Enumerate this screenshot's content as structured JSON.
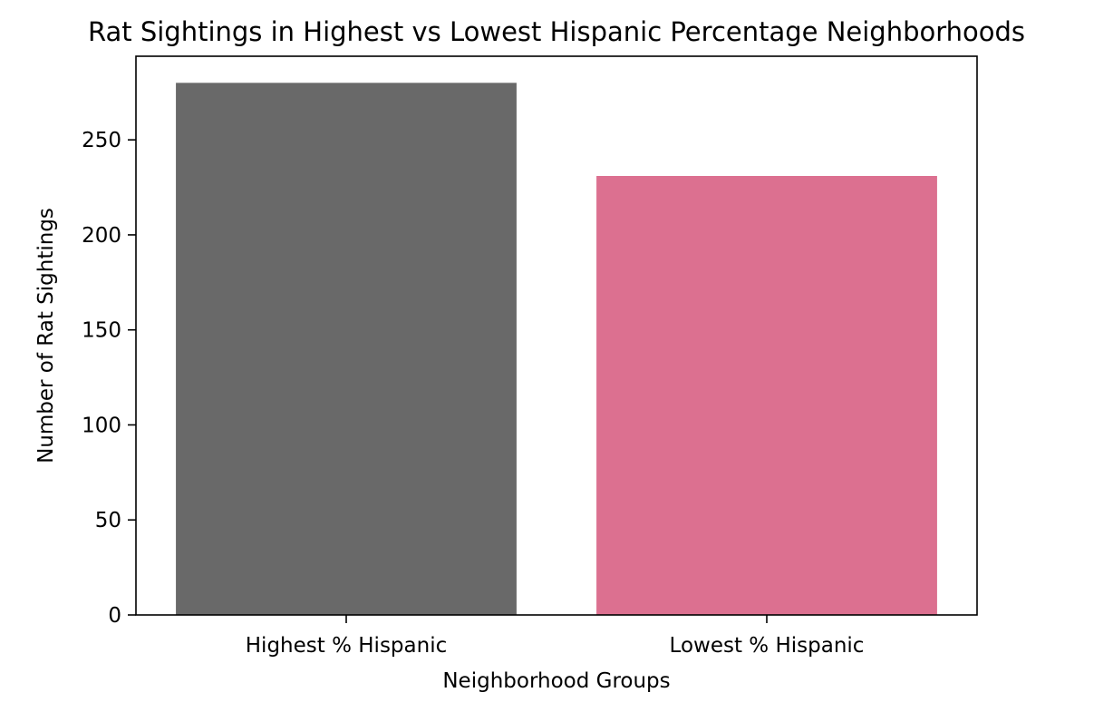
{
  "chart_data": {
    "type": "bar",
    "title": "Rat Sightings in Highest vs Lowest Hispanic Percentage Neighborhoods",
    "xlabel": "Neighborhood Groups",
    "ylabel": "Number of Rat Sightings",
    "categories": [
      "Highest % Hispanic",
      "Lowest % Hispanic"
    ],
    "values": [
      280,
      231
    ],
    "colors": [
      "#696969",
      "#dc7090"
    ],
    "ylim": [
      0,
      294
    ],
    "yticks": [
      0,
      50,
      100,
      150,
      200,
      250
    ],
    "grid": false,
    "legend": "none"
  }
}
